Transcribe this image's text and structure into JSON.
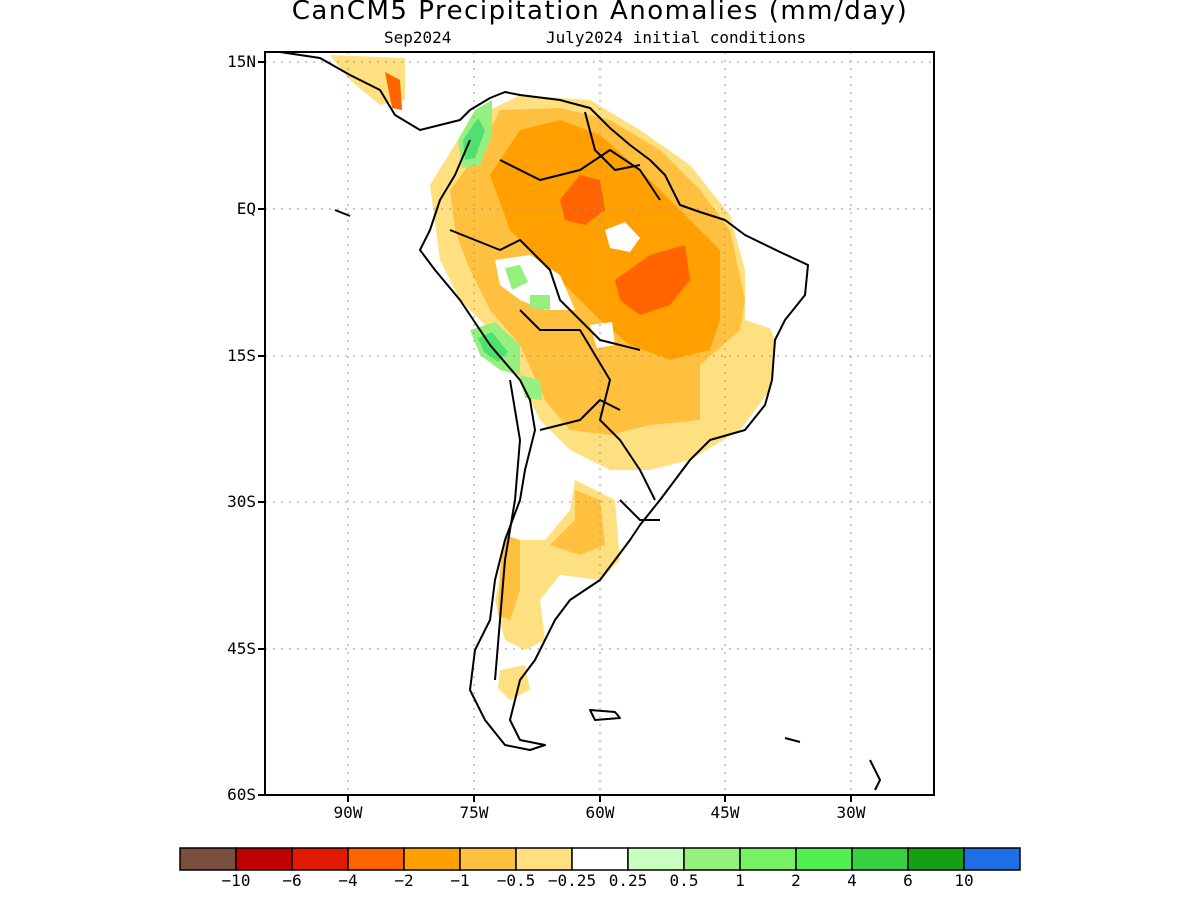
{
  "header": {
    "title": "CanCM5 Precipitation Anomalies (mm/day)",
    "valid_month": "Sep2024",
    "init_conditions": "July2024 initial conditions"
  },
  "axes": {
    "lat_ticks": [
      "15N",
      "EQ",
      "15S",
      "30S",
      "45S",
      "60S"
    ],
    "lon_ticks": [
      "90W",
      "75W",
      "60W",
      "45W",
      "30W"
    ]
  },
  "colorbar": {
    "labels": [
      "−10",
      "−6",
      "−4",
      "−2",
      "−1",
      "−0.5",
      "−0.25",
      "0.25",
      "0.5",
      "1",
      "2",
      "4",
      "6",
      "10"
    ],
    "colors": [
      "#7a4f40",
      "#c00000",
      "#e01a00",
      "#ff6400",
      "#ffa000",
      "#ffc040",
      "#ffe080",
      "#ffffff",
      "#c8ffc0",
      "#96f080",
      "#78f064",
      "#50f050",
      "#37d040",
      "#14a014",
      "#1e6ee6"
    ]
  },
  "legend_colors": {
    "dry_strong": "#ff6400",
    "dry_moderate": "#ffa000",
    "dry_light": "#ffc040",
    "dry_weak": "#ffe080",
    "wet_weak": "#96f080",
    "wet_moderate": "#50e070",
    "coast": "#000000"
  }
}
